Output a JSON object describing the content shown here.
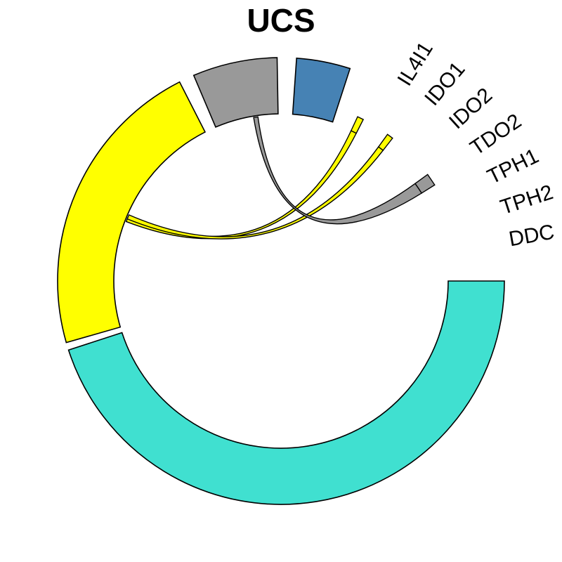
{
  "chart_data": {
    "type": "chord",
    "title": "UCS",
    "sectors": [
      {
        "name": "IL4I1",
        "color": "#4682B4"
      },
      {
        "name": "IDO1",
        "color": "#FFFF00"
      },
      {
        "name": "IDO2",
        "color": "#FFFF00"
      },
      {
        "name": "TDO2",
        "color": "#999999"
      },
      {
        "name": "TPH1",
        "color": "#999999"
      },
      {
        "name": "TPH2",
        "color": "#999999"
      },
      {
        "name": "DDC",
        "color": "#40E0D0"
      },
      {
        "name": "",
        "color": "#40E0D0"
      },
      {
        "name": "",
        "color": "#FFFF00"
      },
      {
        "name": "",
        "color": "#999999"
      }
    ],
    "links": [
      {
        "from": "IDO1",
        "to_color": "#FFFF00",
        "color": "#FFFF00"
      },
      {
        "from": "IDO2",
        "to_color": "#FFFF00",
        "color": "#FFFF00"
      },
      {
        "from": "TDO2",
        "to_color": "#999999",
        "color": "#999999"
      }
    ]
  }
}
